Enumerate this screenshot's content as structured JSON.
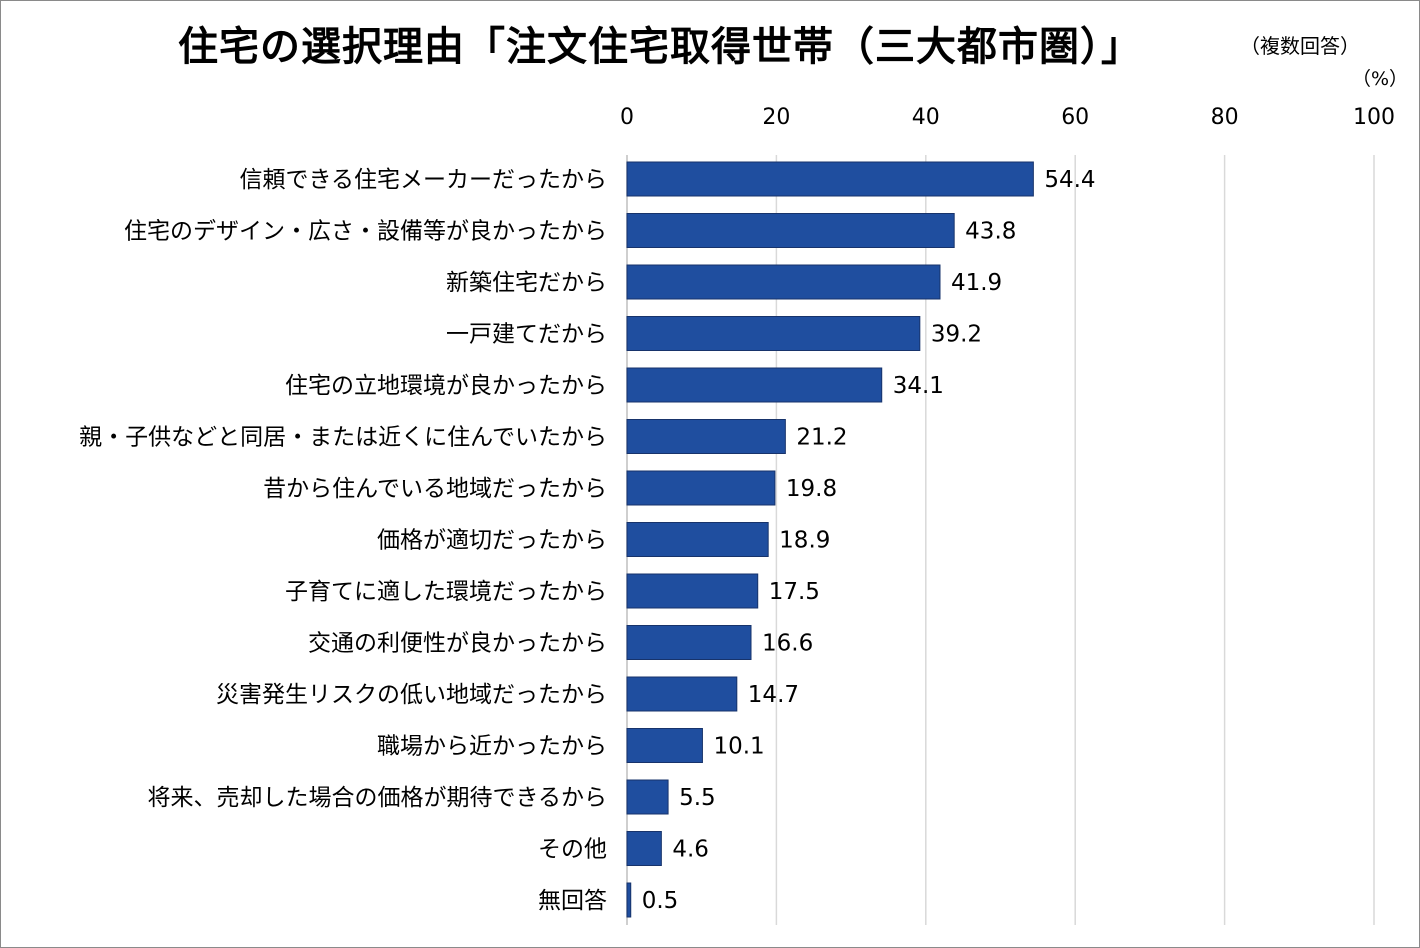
{
  "chart_data": {
    "type": "bar",
    "orientation": "horizontal",
    "title": "住宅の選択理由「注文住宅取得世帯（三大都市圏）」",
    "subtitle": "（複数回答）",
    "unit_label": "（%）",
    "xlim": [
      0,
      100
    ],
    "ticks": [
      "0",
      "20",
      "40",
      "60",
      "80",
      "100"
    ],
    "tick_values": [
      0,
      20,
      40,
      60,
      80,
      100
    ],
    "grid": true,
    "bar_color": "#1F4E9F",
    "categories": [
      "信頼できる住宅メーカーだったから",
      "住宅のデザイン・広さ・設備等が良かったから",
      "新築住宅だから",
      "一戸建てだから",
      "住宅の立地環境が良かったから",
      "親・子供などと同居・または近くに住んでいたから",
      "昔から住んでいる地域だったから",
      "価格が適切だったから",
      "子育てに適した環境だったから",
      "交通の利便性が良かったから",
      "災害発生リスクの低い地域だったから",
      "職場から近かったから",
      "将来、売却した場合の価格が期待できるから",
      "その他",
      "無回答"
    ],
    "values": [
      54.4,
      43.8,
      41.9,
      39.2,
      34.1,
      21.2,
      19.8,
      18.9,
      17.5,
      16.6,
      14.7,
      10.1,
      5.5,
      4.6,
      0.5
    ],
    "value_labels": [
      "54.4",
      "43.8",
      "41.9",
      "39.2",
      "34.1",
      "21.2",
      "19.8",
      "18.9",
      "17.5",
      "16.6",
      "14.7",
      "10.1",
      "5.5",
      "4.6",
      "0.5"
    ]
  }
}
